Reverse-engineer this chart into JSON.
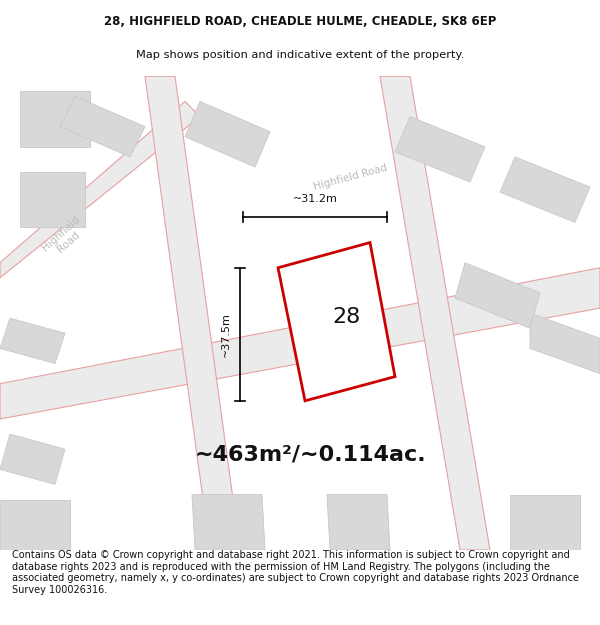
{
  "title_line1": "28, HIGHFIELD ROAD, CHEADLE HULME, CHEADLE, SK8 6EP",
  "title_line2": "Map shows position and indicative extent of the property.",
  "area_text": "~463m²/~0.114ac.",
  "number_label": "28",
  "dim_height": "~37.5m",
  "dim_width": "~31.2m",
  "footer_text": "Contains OS data © Crown copyright and database right 2021. This information is subject to Crown copyright and database rights 2023 and is reproduced with the permission of HM Land Registry. The polygons (including the associated geometry, namely x, y co-ordinates) are subject to Crown copyright and database rights 2023 Ordnance Survey 100026316.",
  "map_bg": "#eeeeee",
  "road_fill": "#e8e8e8",
  "road_stroke": "#e8a0a0",
  "bld_fill": "#d8d8d8",
  "bld_stroke": "#c8c8c8",
  "property_stroke": "#cc0000",
  "property_fill": "#ffffff",
  "title_fontsize": 8.5,
  "area_fontsize": 16,
  "number_fontsize": 16,
  "dim_fontsize": 8,
  "footer_fontsize": 7.0
}
